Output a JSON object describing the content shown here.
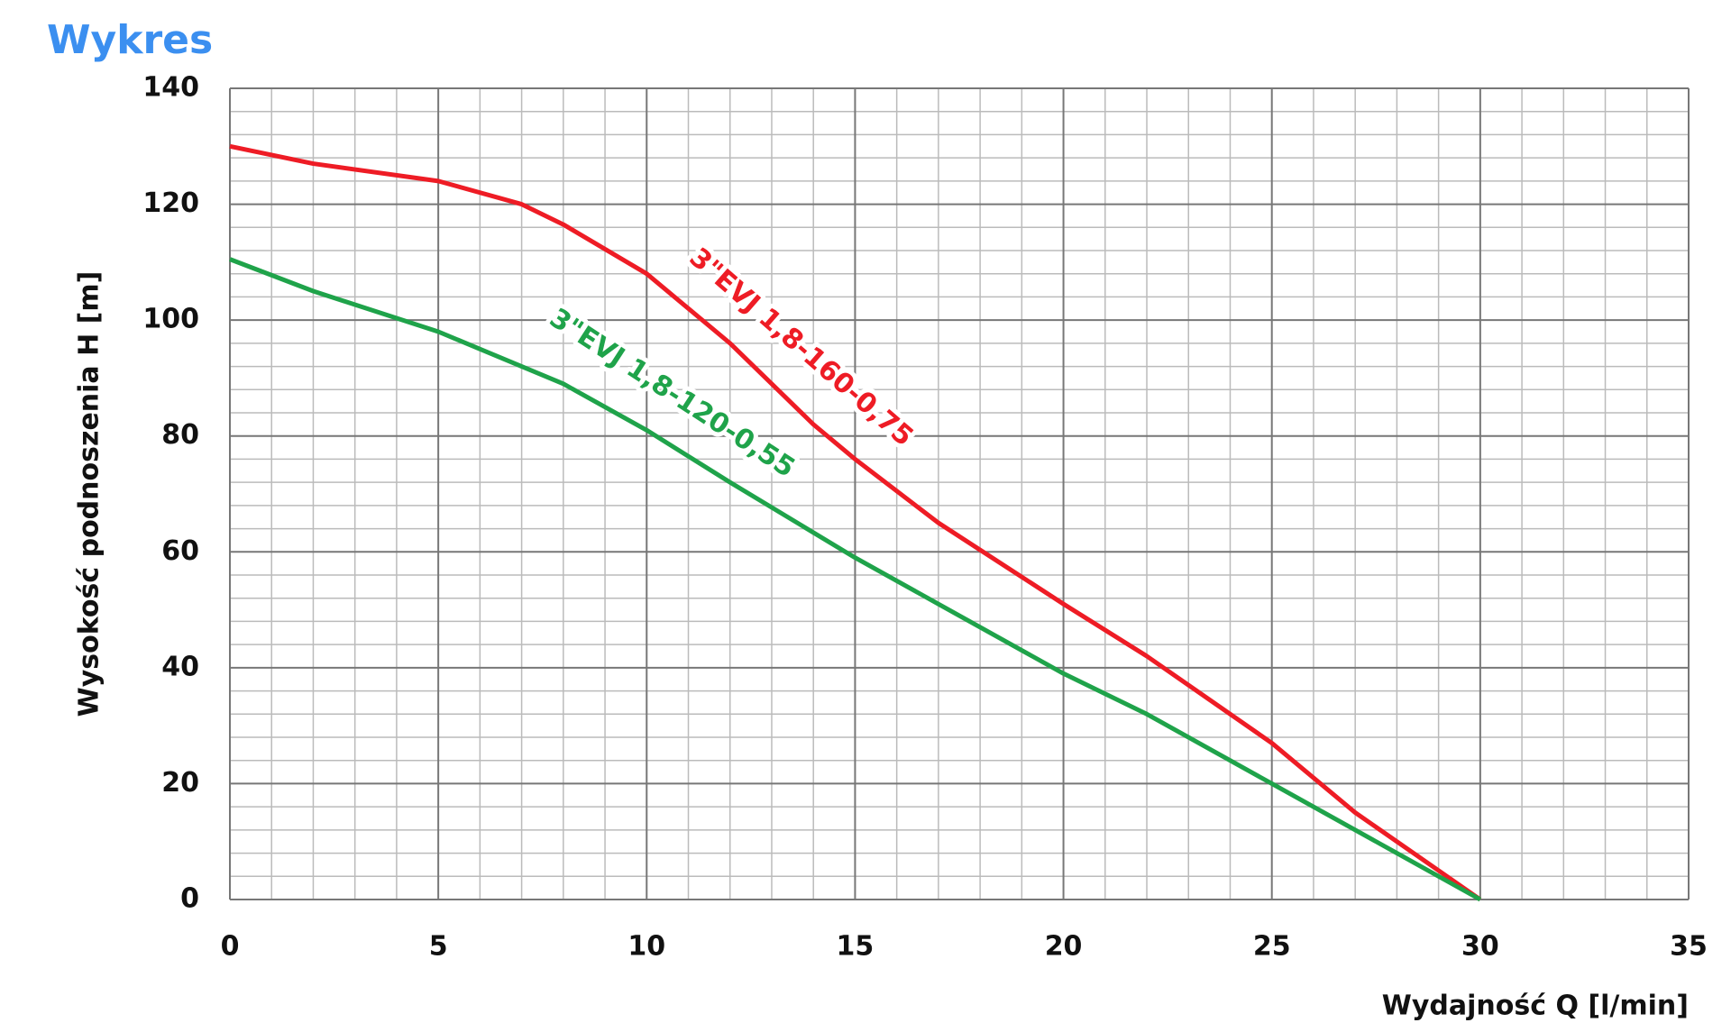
{
  "chart_data": {
    "type": "line",
    "title": "Wykres",
    "x_label": "Wydajność Q [l/min]",
    "y_label": "Wysokość podnoszenia H [m]",
    "xlim": [
      0,
      35
    ],
    "xticks": [
      0,
      5,
      10,
      15,
      20,
      25,
      30,
      35
    ],
    "ylim": [
      0,
      140
    ],
    "yticks": [
      0,
      20,
      40,
      60,
      80,
      100,
      120,
      140
    ],
    "grid": true,
    "legend": "inline",
    "series": [
      {
        "name": "3\"EVJ 1,8-160-0,75",
        "color": "#ee1c25",
        "x": [
          0,
          2,
          5,
          7,
          8,
          10,
          12,
          14,
          15,
          17,
          20,
          22,
          25,
          27,
          30
        ],
        "values": [
          130,
          127,
          124,
          120,
          116.5,
          108,
          96,
          82,
          76,
          65,
          51,
          42,
          27,
          15,
          0
        ]
      },
      {
        "name": "3\"EVJ 1,8-120-0,55",
        "color": "#1fa34a",
        "x": [
          0,
          2,
          5,
          8,
          10,
          12,
          15,
          17,
          20,
          22,
          25,
          28,
          30
        ],
        "values": [
          110.5,
          105,
          98,
          89,
          81,
          72,
          59,
          51,
          39,
          32,
          20,
          8,
          0
        ]
      }
    ]
  }
}
